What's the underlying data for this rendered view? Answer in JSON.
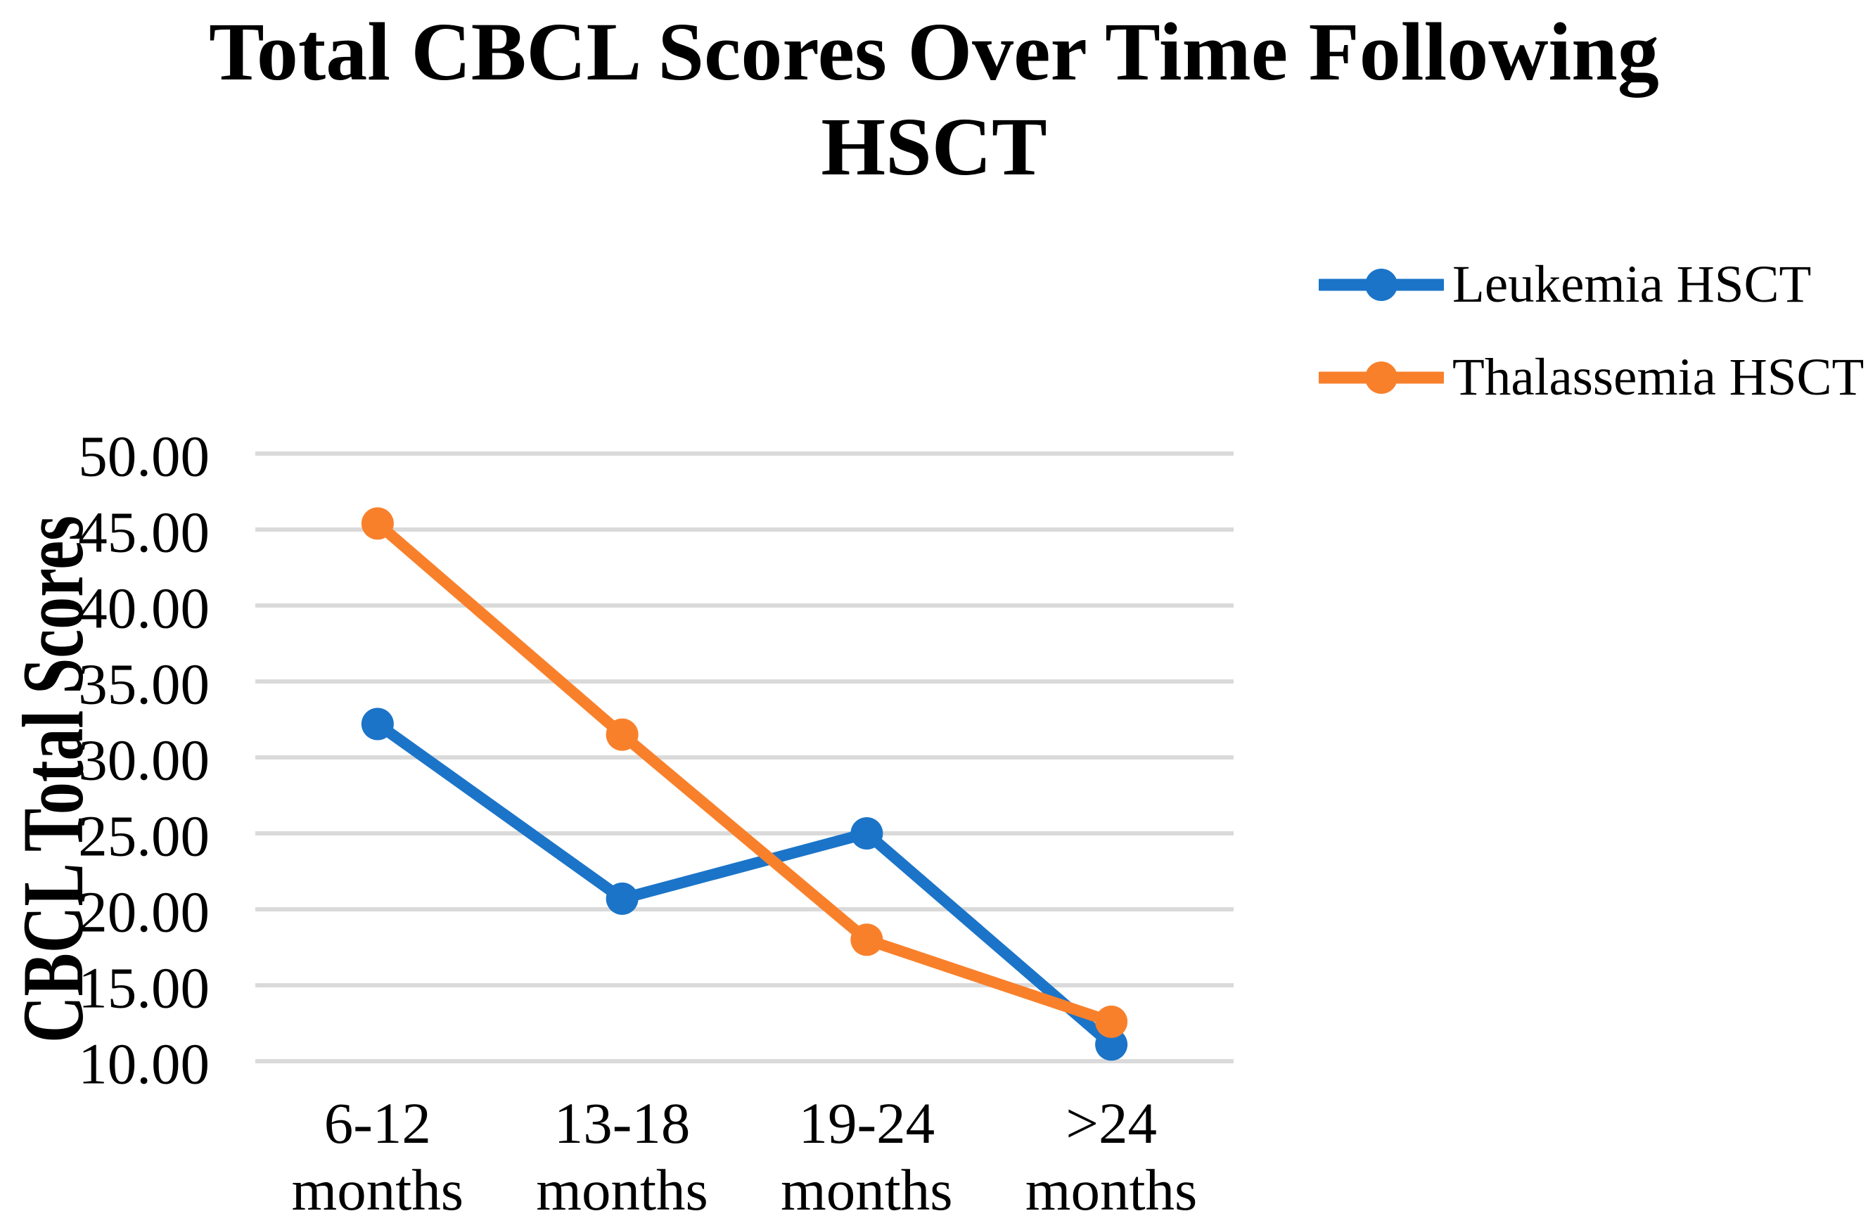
{
  "title": {
    "line1": "Total CBCL Scores Over Time Following",
    "line2": "HSCT"
  },
  "y_axis": {
    "title": "CBCL Total Scores",
    "tick_labels": [
      "50.00",
      "45.00",
      "40.00",
      "35.00",
      "30.00",
      "25.00",
      "20.00",
      "15.00",
      "10.00"
    ]
  },
  "x_axis": {
    "categories": [
      "6-12 months",
      "13-18 months",
      "19-24 months",
      ">24 months"
    ]
  },
  "colors": {
    "background": "#FFFFFF",
    "gridline": "#DADADA",
    "text": "#000000",
    "leukemia_blue": "#1B74C8",
    "thalassemia_orange": "#F9802B"
  },
  "chart_data": {
    "type": "line",
    "title": "Total CBCL Scores Over Time Following HSCT",
    "xlabel": "",
    "ylabel": "CBCL Total Scores",
    "categories": [
      "6-12 months",
      "13-18 months",
      "19-24 months",
      ">24 months"
    ],
    "series": [
      {
        "name": "Leukemia HSCT",
        "color": "#1B74C8",
        "marker": "circle",
        "values": [
          32.2,
          20.7,
          25.0,
          11.1
        ]
      },
      {
        "name": "Thalassemia HSCT",
        "color": "#F9802B",
        "marker": "circle",
        "values": [
          45.4,
          31.5,
          18.0,
          12.6
        ]
      }
    ],
    "ylim": [
      10,
      50
    ],
    "ytick_step": 5,
    "grid": "horizontal",
    "legend_position": "right-top"
  }
}
